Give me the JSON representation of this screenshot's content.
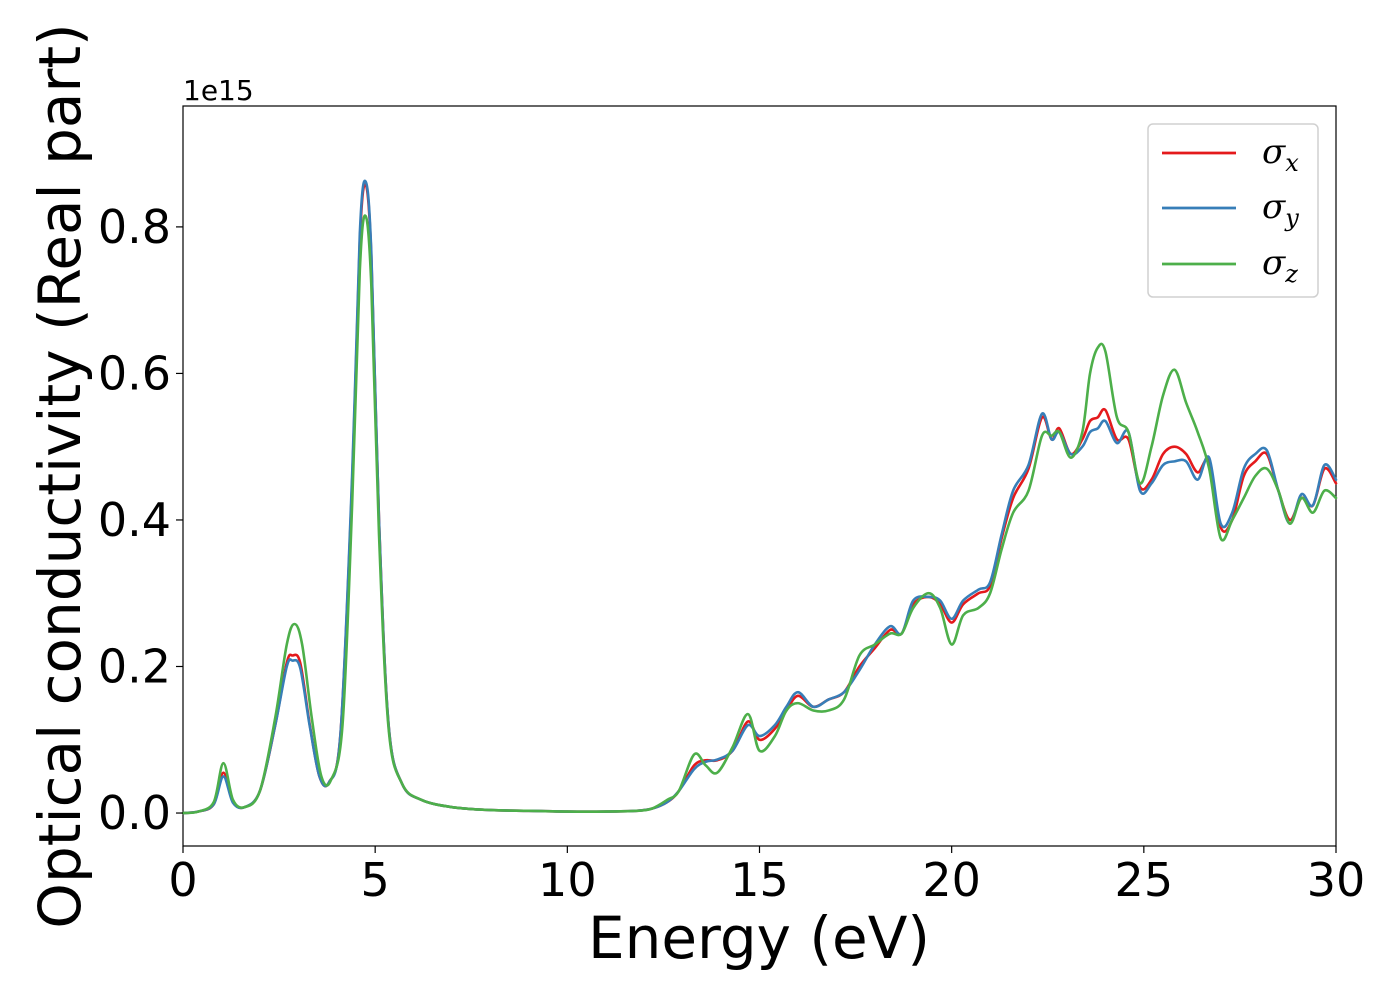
{
  "chart_data": {
    "type": "line",
    "title": "",
    "xlabel": "Energy (eV)",
    "ylabel": "Optical conductivity (Real part)",
    "y_offset_label": "1e15",
    "xlim": [
      0,
      30
    ],
    "ylim": [
      -0.045,
      0.965
    ],
    "xticks": [
      0,
      5,
      10,
      15,
      20,
      25,
      30
    ],
    "xtick_labels": [
      "0",
      "5",
      "10",
      "15",
      "20",
      "25",
      "30"
    ],
    "yticks": [
      0.0,
      0.2,
      0.4,
      0.6,
      0.8
    ],
    "ytick_labels": [
      "0.0",
      "0.2",
      "0.4",
      "0.6",
      "0.8"
    ],
    "grid": false,
    "legend_position": "top-right",
    "series": [
      {
        "name": "σx",
        "symbol": "σ",
        "subscript": "x",
        "color": "#e41a1c",
        "points": [
          [
            0,
            0
          ],
          [
            0.4,
            0.002
          ],
          [
            0.8,
            0.012
          ],
          [
            1.05,
            0.055
          ],
          [
            1.3,
            0.015
          ],
          [
            1.6,
            0.008
          ],
          [
            2.0,
            0.03
          ],
          [
            2.4,
            0.12
          ],
          [
            2.7,
            0.205
          ],
          [
            2.85,
            0.215
          ],
          [
            3.05,
            0.205
          ],
          [
            3.3,
            0.12
          ],
          [
            3.55,
            0.05
          ],
          [
            3.8,
            0.042
          ],
          [
            4.1,
            0.11
          ],
          [
            4.4,
            0.45
          ],
          [
            4.6,
            0.78
          ],
          [
            4.75,
            0.858
          ],
          [
            4.9,
            0.76
          ],
          [
            5.1,
            0.4
          ],
          [
            5.35,
            0.12
          ],
          [
            5.7,
            0.04
          ],
          [
            6.2,
            0.018
          ],
          [
            7,
            0.008
          ],
          [
            8,
            0.004
          ],
          [
            9,
            0.003
          ],
          [
            10,
            0.002
          ],
          [
            11,
            0.002
          ],
          [
            11.8,
            0.003
          ],
          [
            12.2,
            0.006
          ],
          [
            12.6,
            0.015
          ],
          [
            12.9,
            0.03
          ],
          [
            13.3,
            0.065
          ],
          [
            13.6,
            0.072
          ],
          [
            13.9,
            0.072
          ],
          [
            14.3,
            0.085
          ],
          [
            14.7,
            0.125
          ],
          [
            15.0,
            0.1
          ],
          [
            15.4,
            0.115
          ],
          [
            15.7,
            0.14
          ],
          [
            16.0,
            0.16
          ],
          [
            16.4,
            0.145
          ],
          [
            16.8,
            0.155
          ],
          [
            17.2,
            0.165
          ],
          [
            17.6,
            0.2
          ],
          [
            18.0,
            0.225
          ],
          [
            18.4,
            0.25
          ],
          [
            18.7,
            0.245
          ],
          [
            19.0,
            0.285
          ],
          [
            19.4,
            0.295
          ],
          [
            19.7,
            0.285
          ],
          [
            20.0,
            0.26
          ],
          [
            20.3,
            0.285
          ],
          [
            20.7,
            0.3
          ],
          [
            21.0,
            0.31
          ],
          [
            21.3,
            0.375
          ],
          [
            21.6,
            0.43
          ],
          [
            22.0,
            0.47
          ],
          [
            22.35,
            0.54
          ],
          [
            22.6,
            0.51
          ],
          [
            22.8,
            0.525
          ],
          [
            23.1,
            0.49
          ],
          [
            23.4,
            0.51
          ],
          [
            23.6,
            0.535
          ],
          [
            23.8,
            0.54
          ],
          [
            24.0,
            0.55
          ],
          [
            24.3,
            0.51
          ],
          [
            24.6,
            0.51
          ],
          [
            24.9,
            0.445
          ],
          [
            25.2,
            0.455
          ],
          [
            25.5,
            0.49
          ],
          [
            25.8,
            0.5
          ],
          [
            26.1,
            0.49
          ],
          [
            26.4,
            0.465
          ],
          [
            26.7,
            0.48
          ],
          [
            27.0,
            0.39
          ],
          [
            27.3,
            0.4
          ],
          [
            27.6,
            0.46
          ],
          [
            27.9,
            0.48
          ],
          [
            28.2,
            0.49
          ],
          [
            28.5,
            0.44
          ],
          [
            28.8,
            0.4
          ],
          [
            29.1,
            0.43
          ],
          [
            29.4,
            0.42
          ],
          [
            29.7,
            0.47
          ],
          [
            30.0,
            0.45
          ]
        ]
      },
      {
        "name": "σy",
        "symbol": "σ",
        "subscript": "y",
        "color": "#377eb8",
        "points": [
          [
            0,
            0
          ],
          [
            0.4,
            0.002
          ],
          [
            0.8,
            0.012
          ],
          [
            1.05,
            0.05
          ],
          [
            1.3,
            0.014
          ],
          [
            1.6,
            0.008
          ],
          [
            2.0,
            0.03
          ],
          [
            2.4,
            0.12
          ],
          [
            2.7,
            0.2
          ],
          [
            2.85,
            0.208
          ],
          [
            3.05,
            0.198
          ],
          [
            3.3,
            0.118
          ],
          [
            3.55,
            0.05
          ],
          [
            3.8,
            0.042
          ],
          [
            4.1,
            0.11
          ],
          [
            4.4,
            0.46
          ],
          [
            4.6,
            0.79
          ],
          [
            4.75,
            0.862
          ],
          [
            4.9,
            0.765
          ],
          [
            5.1,
            0.4
          ],
          [
            5.35,
            0.12
          ],
          [
            5.7,
            0.04
          ],
          [
            6.2,
            0.018
          ],
          [
            7,
            0.008
          ],
          [
            8,
            0.004
          ],
          [
            9,
            0.003
          ],
          [
            10,
            0.002
          ],
          [
            11,
            0.002
          ],
          [
            11.8,
            0.003
          ],
          [
            12.2,
            0.006
          ],
          [
            12.6,
            0.015
          ],
          [
            12.9,
            0.03
          ],
          [
            13.3,
            0.06
          ],
          [
            13.6,
            0.07
          ],
          [
            13.9,
            0.073
          ],
          [
            14.3,
            0.085
          ],
          [
            14.7,
            0.12
          ],
          [
            15.0,
            0.105
          ],
          [
            15.4,
            0.12
          ],
          [
            15.7,
            0.145
          ],
          [
            16.0,
            0.165
          ],
          [
            16.4,
            0.145
          ],
          [
            16.8,
            0.155
          ],
          [
            17.2,
            0.165
          ],
          [
            17.6,
            0.195
          ],
          [
            18.0,
            0.23
          ],
          [
            18.4,
            0.255
          ],
          [
            18.7,
            0.245
          ],
          [
            19.0,
            0.29
          ],
          [
            19.4,
            0.295
          ],
          [
            19.7,
            0.29
          ],
          [
            20.0,
            0.265
          ],
          [
            20.3,
            0.29
          ],
          [
            20.7,
            0.305
          ],
          [
            21.0,
            0.315
          ],
          [
            21.3,
            0.38
          ],
          [
            21.6,
            0.44
          ],
          [
            22.0,
            0.475
          ],
          [
            22.35,
            0.545
          ],
          [
            22.6,
            0.51
          ],
          [
            22.8,
            0.52
          ],
          [
            23.1,
            0.49
          ],
          [
            23.4,
            0.5
          ],
          [
            23.6,
            0.52
          ],
          [
            23.8,
            0.525
          ],
          [
            24.0,
            0.535
          ],
          [
            24.3,
            0.505
          ],
          [
            24.6,
            0.52
          ],
          [
            24.9,
            0.44
          ],
          [
            25.2,
            0.45
          ],
          [
            25.5,
            0.475
          ],
          [
            25.8,
            0.48
          ],
          [
            26.1,
            0.48
          ],
          [
            26.4,
            0.455
          ],
          [
            26.7,
            0.485
          ],
          [
            27.0,
            0.395
          ],
          [
            27.3,
            0.41
          ],
          [
            27.6,
            0.47
          ],
          [
            27.9,
            0.49
          ],
          [
            28.2,
            0.495
          ],
          [
            28.5,
            0.44
          ],
          [
            28.8,
            0.395
          ],
          [
            29.1,
            0.435
          ],
          [
            29.4,
            0.42
          ],
          [
            29.7,
            0.475
          ],
          [
            30.0,
            0.455
          ]
        ]
      },
      {
        "name": "σz",
        "symbol": "σ",
        "subscript": "z",
        "color": "#4daf4a",
        "points": [
          [
            0,
            0
          ],
          [
            0.4,
            0.002
          ],
          [
            0.8,
            0.015
          ],
          [
            1.05,
            0.068
          ],
          [
            1.3,
            0.018
          ],
          [
            1.6,
            0.008
          ],
          [
            2.0,
            0.03
          ],
          [
            2.4,
            0.13
          ],
          [
            2.7,
            0.23
          ],
          [
            2.9,
            0.258
          ],
          [
            3.1,
            0.23
          ],
          [
            3.35,
            0.13
          ],
          [
            3.6,
            0.05
          ],
          [
            3.85,
            0.045
          ],
          [
            4.15,
            0.12
          ],
          [
            4.4,
            0.42
          ],
          [
            4.6,
            0.74
          ],
          [
            4.75,
            0.815
          ],
          [
            4.9,
            0.72
          ],
          [
            5.1,
            0.38
          ],
          [
            5.35,
            0.115
          ],
          [
            5.7,
            0.04
          ],
          [
            6.2,
            0.018
          ],
          [
            7,
            0.008
          ],
          [
            8,
            0.004
          ],
          [
            9,
            0.003
          ],
          [
            10,
            0.002
          ],
          [
            11,
            0.002
          ],
          [
            11.8,
            0.003
          ],
          [
            12.2,
            0.006
          ],
          [
            12.6,
            0.018
          ],
          [
            12.9,
            0.03
          ],
          [
            13.3,
            0.08
          ],
          [
            13.6,
            0.065
          ],
          [
            13.9,
            0.055
          ],
          [
            14.3,
            0.09
          ],
          [
            14.7,
            0.135
          ],
          [
            15.0,
            0.085
          ],
          [
            15.4,
            0.105
          ],
          [
            15.7,
            0.14
          ],
          [
            16.0,
            0.15
          ],
          [
            16.4,
            0.14
          ],
          [
            16.8,
            0.14
          ],
          [
            17.2,
            0.155
          ],
          [
            17.6,
            0.215
          ],
          [
            18.0,
            0.23
          ],
          [
            18.4,
            0.245
          ],
          [
            18.7,
            0.245
          ],
          [
            19.0,
            0.28
          ],
          [
            19.4,
            0.3
          ],
          [
            19.7,
            0.28
          ],
          [
            20.0,
            0.23
          ],
          [
            20.3,
            0.27
          ],
          [
            20.7,
            0.28
          ],
          [
            21.0,
            0.3
          ],
          [
            21.3,
            0.36
          ],
          [
            21.6,
            0.41
          ],
          [
            22.0,
            0.44
          ],
          [
            22.35,
            0.515
          ],
          [
            22.6,
            0.515
          ],
          [
            22.8,
            0.52
          ],
          [
            23.1,
            0.485
          ],
          [
            23.4,
            0.52
          ],
          [
            23.6,
            0.6
          ],
          [
            23.8,
            0.635
          ],
          [
            24.0,
            0.63
          ],
          [
            24.3,
            0.54
          ],
          [
            24.6,
            0.52
          ],
          [
            24.9,
            0.45
          ],
          [
            25.2,
            0.5
          ],
          [
            25.5,
            0.57
          ],
          [
            25.8,
            0.605
          ],
          [
            26.1,
            0.56
          ],
          [
            26.4,
            0.52
          ],
          [
            26.7,
            0.47
          ],
          [
            27.0,
            0.375
          ],
          [
            27.3,
            0.4
          ],
          [
            27.6,
            0.43
          ],
          [
            27.9,
            0.46
          ],
          [
            28.2,
            0.47
          ],
          [
            28.5,
            0.44
          ],
          [
            28.8,
            0.395
          ],
          [
            29.1,
            0.43
          ],
          [
            29.4,
            0.41
          ],
          [
            29.7,
            0.44
          ],
          [
            30.0,
            0.43
          ]
        ]
      }
    ]
  }
}
